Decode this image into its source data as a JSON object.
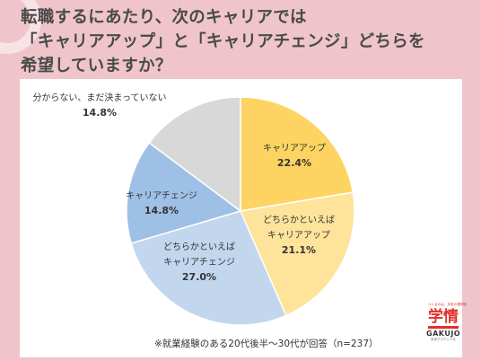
{
  "title": {
    "line1": "転職するにあたり、次のキャリアでは",
    "line2": "「キャリアアップ」と「キャリアチェンジ」どちらを",
    "line3": "希望していますか？"
  },
  "footnote": "※就業経験のある20代後半〜30代が回答（n=237）",
  "logo": {
    "tagline": "つくるのは、未来の選択肢",
    "mark": "学情",
    "name_en": "GAKUJO",
    "sub": "未来グラウンドを"
  },
  "chart_data": {
    "type": "pie",
    "title": "",
    "start_angle_deg": 0,
    "direction": "clockwise",
    "slices": [
      {
        "label_lines": [
          "キャリアアップ"
        ],
        "value": 22.4,
        "value_text": "22.4%",
        "color": "#fdd461"
      },
      {
        "label_lines": [
          "どちらかといえば",
          "キャリアアップ"
        ],
        "value": 21.1,
        "value_text": "21.1%",
        "color": "#fee39a"
      },
      {
        "label_lines": [
          "どちらかといえば",
          "キャリアチェンジ"
        ],
        "value": 27.0,
        "value_text": "27.0%",
        "color": "#c2d6ee"
      },
      {
        "label_lines": [
          "キャリアチェンジ"
        ],
        "value": 14.8,
        "value_text": "14.8%",
        "color": "#9fc0e6"
      },
      {
        "label_lines": [
          "分からない、まだ決まっていない"
        ],
        "value": 14.8,
        "value_text": "14.8%",
        "color": "#d8d8d8"
      }
    ]
  }
}
